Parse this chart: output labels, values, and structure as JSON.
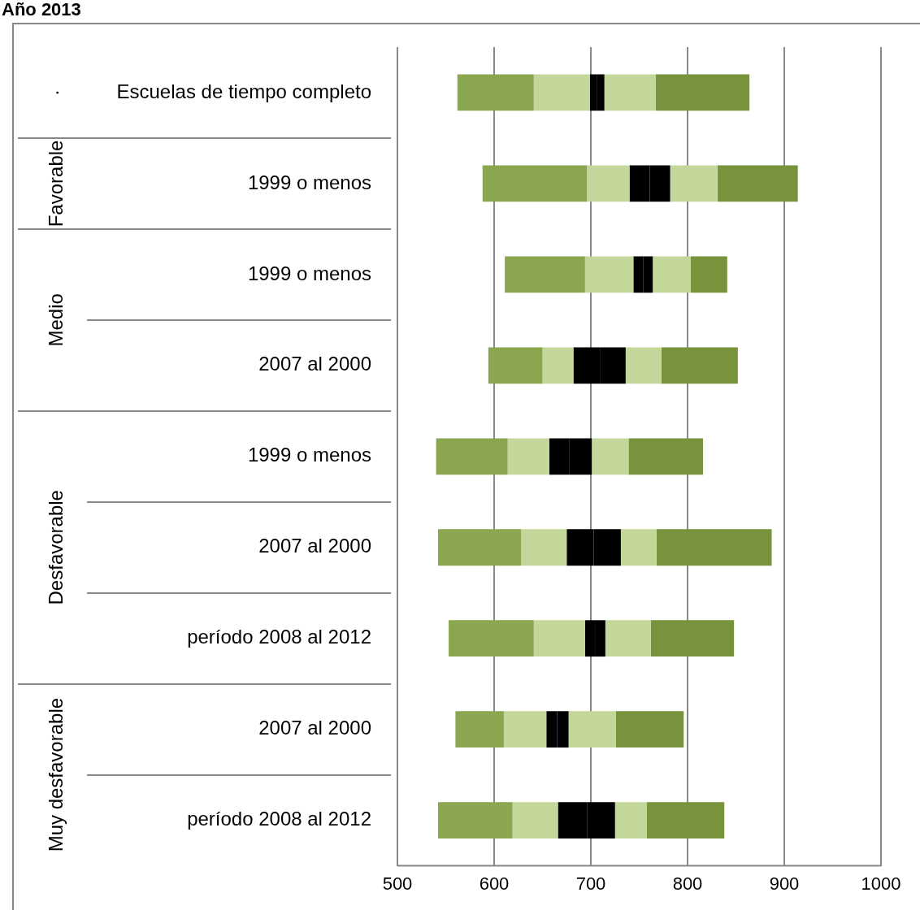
{
  "chart_data": {
    "type": "bar",
    "orientation": "horizontal",
    "title": "Año 2013",
    "categories": [
      "Escuelas de tiempo completo",
      "1999 o menos",
      "1999 o menos",
      "2007 al 2000",
      "1999 o menos",
      "2007 al 2000",
      "período 2008 al 2012",
      "2007 al 2000",
      "período 2008 al 2012"
    ],
    "series": [
      {
        "color": "#8aa64e",
        "base": [
          562,
          588,
          611,
          594,
          540,
          542,
          553,
          560,
          542
        ],
        "values": [
          79,
          108,
          83,
          56,
          74,
          86,
          88,
          50,
          77
        ]
      },
      {
        "color": "#c4d79b",
        "base": [
          641,
          696,
          694,
          650,
          614,
          628,
          641,
          610,
          619
        ],
        "values": [
          58,
          44,
          50,
          32,
          43,
          47,
          53,
          44,
          47
        ]
      },
      {
        "color": "#000000",
        "base": [
          699,
          740,
          744,
          682,
          657,
          675,
          694,
          654,
          666
        ],
        "values": [
          7,
          21,
          10,
          28,
          21,
          28,
          11,
          11,
          30
        ]
      },
      {
        "color": "#000000",
        "base": [
          706,
          761,
          754,
          710,
          678,
          703,
          705,
          665,
          696
        ],
        "values": [
          8,
          21,
          10,
          26,
          23,
          28,
          10,
          12,
          29
        ]
      },
      {
        "color": "#c4d79b",
        "base": [
          714,
          782,
          764,
          736,
          701,
          731,
          715,
          677,
          725
        ],
        "values": [
          53,
          49,
          39,
          37,
          38,
          37,
          47,
          49,
          33
        ]
      },
      {
        "color": "#77933c",
        "base": [
          767,
          831,
          803,
          773,
          739,
          768,
          762,
          726,
          758
        ],
        "values": [
          97,
          83,
          38,
          79,
          77,
          119,
          86,
          70,
          80
        ]
      }
    ],
    "xlim": [
      500,
      1000
    ],
    "xticks": [
      500,
      600,
      700,
      800,
      900,
      1000
    ],
    "grid": "x",
    "legend": false,
    "annotations": [
      "·",
      "Favorable",
      "Medio",
      "Desfavorable",
      "Muy desfavorable"
    ]
  }
}
